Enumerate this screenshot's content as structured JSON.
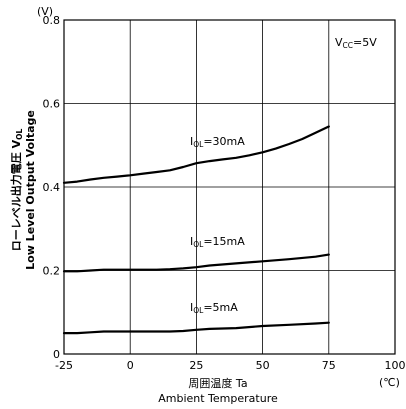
{
  "chart_data": {
    "type": "line",
    "x_unit": "(℃)",
    "y_unit": "(V)",
    "xlabel_jp": "周囲温度 Ta",
    "xlabel_en": "Ambient Temperature",
    "ylabel_jp_main": "ローレベル出力電圧 V",
    "ylabel_jp_sub": "OL",
    "ylabel_en": "Low Level Output Voltage",
    "xlim": [
      -25,
      100
    ],
    "ylim": [
      0,
      0.8
    ],
    "grid": true,
    "x_ticks": [
      "-25",
      "0",
      "25",
      "50",
      "75",
      "100"
    ],
    "y_ticks": [
      "0",
      "0.2",
      "0.4",
      "0.6",
      "0.8"
    ],
    "condition": {
      "main": "V",
      "sub": "CC",
      "suffix": "=5V"
    },
    "series": [
      {
        "label_main": "I",
        "label_sub": "OL",
        "label_suffix": "=30mA",
        "x": [
          -25,
          -20,
          -15,
          -10,
          -5,
          0,
          5,
          10,
          15,
          20,
          25,
          30,
          35,
          40,
          45,
          50,
          55,
          60,
          65,
          70,
          75
        ],
        "y": [
          0.41,
          0.413,
          0.418,
          0.422,
          0.425,
          0.428,
          0.432,
          0.436,
          0.44,
          0.448,
          0.457,
          0.462,
          0.466,
          0.47,
          0.476,
          0.483,
          0.492,
          0.503,
          0.515,
          0.53,
          0.545
        ]
      },
      {
        "label_main": "I",
        "label_sub": "OL",
        "label_suffix": "=15mA",
        "x": [
          -25,
          -20,
          -15,
          -10,
          -5,
          0,
          5,
          10,
          15,
          20,
          25,
          30,
          40,
          50,
          60,
          70,
          75
        ],
        "y": [
          0.198,
          0.198,
          0.2,
          0.202,
          0.202,
          0.202,
          0.202,
          0.202,
          0.203,
          0.205,
          0.208,
          0.212,
          0.217,
          0.222,
          0.227,
          0.233,
          0.238
        ]
      },
      {
        "label_main": "I",
        "label_sub": "OL",
        "label_suffix": "=5mA",
        "x": [
          -25,
          -20,
          -15,
          -10,
          -5,
          0,
          5,
          10,
          15,
          20,
          25,
          30,
          40,
          50,
          60,
          70,
          75
        ],
        "y": [
          0.05,
          0.05,
          0.052,
          0.054,
          0.054,
          0.054,
          0.054,
          0.054,
          0.054,
          0.055,
          0.058,
          0.06,
          0.062,
          0.067,
          0.07,
          0.073,
          0.075
        ]
      }
    ]
  }
}
